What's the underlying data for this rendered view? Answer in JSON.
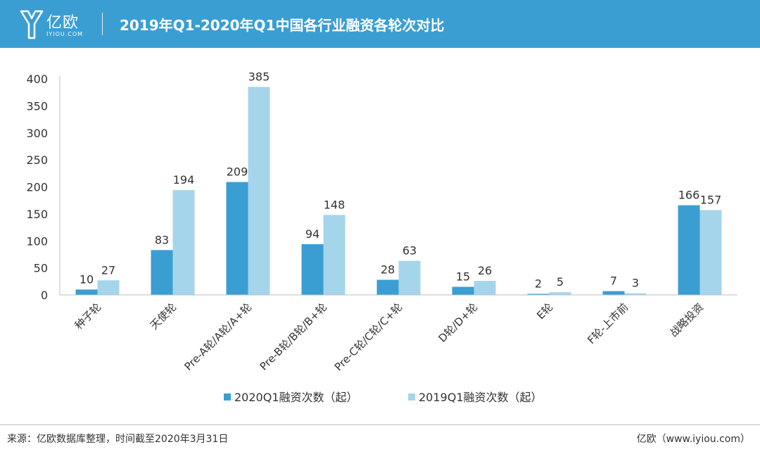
{
  "header": {
    "logo_cn": "亿欧",
    "logo_en": "IYIOU.COM",
    "title": "2019年Q1-2020年Q1中国各行业融资各轮次对比"
  },
  "footer": {
    "source": "来源：亿欧数据库整理，时间截至2020年3月31日",
    "credit": "亿欧（www.iyiou.com）"
  },
  "colors": {
    "header_bg": "#3a9ed3",
    "series_2020": "#3a9ed3",
    "series_2019": "#a5d5ea"
  },
  "chart_data": {
    "type": "bar",
    "title": "2019年Q1-2020年Q1中国各行业融资各轮次对比",
    "xlabel": "",
    "ylabel": "",
    "ylim": [
      0,
      400
    ],
    "yticks": [
      0,
      50,
      100,
      150,
      200,
      250,
      300,
      350,
      400
    ],
    "grid": false,
    "legend_position": "bottom",
    "categories": [
      "种子轮",
      "天使轮",
      "Pre-A轮/A轮/A+轮",
      "Pre-B轮/B轮/B+轮",
      "Pre-C轮/C轮/C+轮",
      "D轮/D+轮",
      "E轮",
      "F轮-上市前",
      "战略投资"
    ],
    "series": [
      {
        "name": "2020Q1融资次数（起）",
        "color": "#3a9ed3",
        "values": [
          10,
          83,
          209,
          94,
          28,
          15,
          2,
          7,
          166
        ]
      },
      {
        "name": "2019Q1融资次数（起）",
        "color": "#a5d5ea",
        "values": [
          27,
          194,
          385,
          148,
          63,
          26,
          5,
          3,
          157
        ]
      }
    ]
  }
}
